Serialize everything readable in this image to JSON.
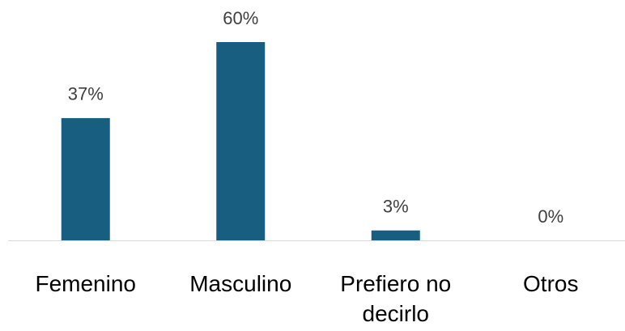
{
  "chart_data": {
    "type": "bar",
    "categories": [
      "Femenino",
      "Masculino",
      "Prefiero no decirlo",
      "Otros"
    ],
    "values": [
      37,
      60,
      3,
      0
    ],
    "value_labels": [
      "37%",
      "60%",
      "3%",
      "0%"
    ],
    "color": "#175e80"
  }
}
